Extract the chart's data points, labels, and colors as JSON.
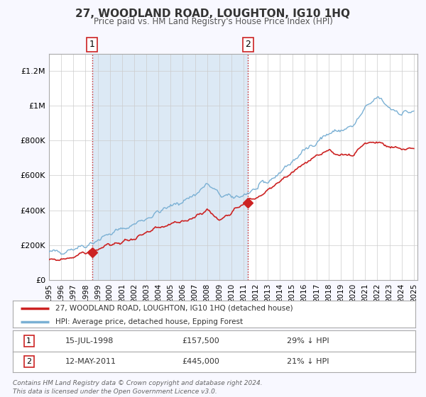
{
  "title": "27, WOODLAND ROAD, LOUGHTON, IG10 1HQ",
  "subtitle": "Price paid vs. HM Land Registry's House Price Index (HPI)",
  "background_color": "#f8f8ff",
  "plot_bg_color": "#ffffff",
  "shaded_region_color": "#dce9f5",
  "grid_color": "#cccccc",
  "hpi_color": "#7ab0d4",
  "price_color": "#cc2222",
  "sale1_date_num": 1998.54,
  "sale1_price": 157500,
  "sale1_label": "15-JUL-1998",
  "sale1_hpi_pct": "29%",
  "sale2_date_num": 2011.36,
  "sale2_price": 445000,
  "sale2_label": "12-MAY-2011",
  "sale2_hpi_pct": "21%",
  "ylim": [
    0,
    1300000
  ],
  "xlim_start": 1995.0,
  "xlim_end": 2025.3,
  "legend_line1": "27, WOODLAND ROAD, LOUGHTON, IG10 1HQ (detached house)",
  "legend_line2": "HPI: Average price, detached house, Epping Forest",
  "footer1": "Contains HM Land Registry data © Crown copyright and database right 2024.",
  "footer2": "This data is licensed under the Open Government Licence v3.0.",
  "yticks": [
    0,
    200000,
    400000,
    600000,
    800000,
    1000000,
    1200000
  ],
  "ytick_labels": [
    "£0",
    "£200K",
    "£400K",
    "£600K",
    "£800K",
    "£1M",
    "£1.2M"
  ],
  "xticks": [
    1995,
    1996,
    1997,
    1998,
    1999,
    2000,
    2001,
    2002,
    2003,
    2004,
    2005,
    2006,
    2007,
    2008,
    2009,
    2010,
    2011,
    2012,
    2013,
    2014,
    2015,
    2016,
    2017,
    2018,
    2019,
    2020,
    2021,
    2022,
    2023,
    2024,
    2025
  ],
  "hpi_key_years": [
    1995,
    1996,
    1997,
    1998,
    1999,
    2000,
    2001,
    2002,
    2003,
    2004,
    2005,
    2006,
    2007,
    2008,
    2009,
    2010,
    2011,
    2012,
    2013,
    2014,
    2015,
    2016,
    2017,
    2018,
    2019,
    2020,
    2021,
    2022,
    2023,
    2024,
    2025
  ],
  "hpi_key_vals": [
    155000,
    165000,
    183000,
    200000,
    230000,
    265000,
    290000,
    320000,
    355000,
    390000,
    420000,
    455000,
    490000,
    550000,
    490000,
    470000,
    490000,
    520000,
    560000,
    620000,
    680000,
    740000,
    800000,
    840000,
    860000,
    880000,
    980000,
    1050000,
    990000,
    960000,
    970000
  ],
  "price_key_years": [
    1995,
    1996,
    1997,
    1998,
    1999,
    2000,
    2001,
    2002,
    2003,
    2004,
    2005,
    2006,
    2007,
    2008,
    2009,
    2010,
    2011,
    2012,
    2013,
    2014,
    2015,
    2016,
    2017,
    2018,
    2019,
    2020,
    2021,
    2022,
    2023,
    2024,
    2025
  ],
  "price_key_vals": [
    110000,
    118000,
    133000,
    157500,
    175000,
    200000,
    218000,
    240000,
    265000,
    295000,
    315000,
    335000,
    365000,
    405000,
    340000,
    395000,
    445000,
    470000,
    510000,
    565000,
    620000,
    670000,
    710000,
    730000,
    720000,
    720000,
    790000,
    790000,
    760000,
    750000,
    760000
  ]
}
